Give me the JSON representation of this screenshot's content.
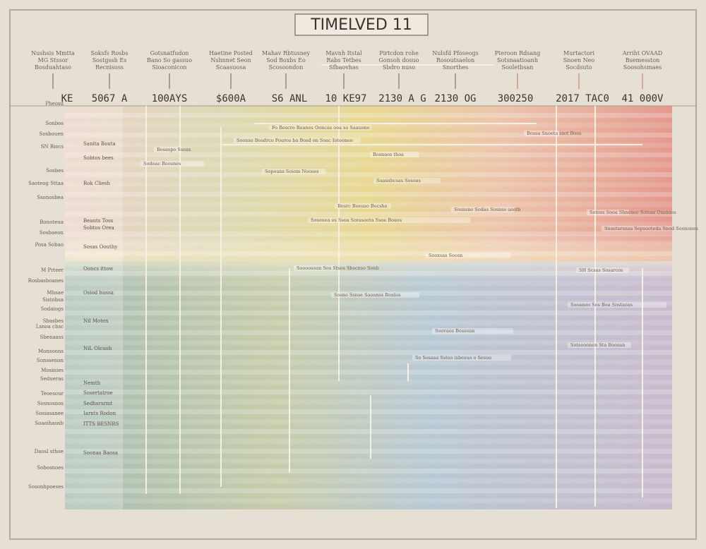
{
  "header": {
    "title": "TIMELVED 11"
  },
  "columns": [
    {
      "caption": [
        "Nushsis Mmtta",
        "MG Stssor",
        "Bosduahtaso"
      ],
      "era": "KE"
    },
    {
      "caption": [
        "Soksfs Rosbs",
        "Sostgssh Es",
        "Recnisoss"
      ],
      "era": "5067 A"
    },
    {
      "caption": [
        "Gotsnatfudon",
        "Bano So gassuo",
        "Sioaconicon"
      ],
      "era": "100AYS"
    },
    {
      "caption": [
        "Haetine Posted",
        "Nshnnet Seon",
        "Scaasuosa"
      ],
      "era": "$600A"
    },
    {
      "caption": [
        "Mahav Rbtusney",
        "Sod Boxbs Eo",
        "Scosoondon"
      ],
      "era": "S6 ANL"
    },
    {
      "caption": [
        "Mavnh Itstal",
        "Rabs Tetbes",
        "Sfbaovhas"
      ],
      "era": "10 KE97"
    },
    {
      "caption": [
        "Pirtcdon rohe",
        "Gonsoh dosuo",
        "Sbdro nuso"
      ],
      "era": "2130 A G"
    },
    {
      "caption": [
        "Nulsfd Pfoseogs",
        "Rosoutsaelon",
        "Snorthes"
      ],
      "era": "2130 OG"
    },
    {
      "caption": [
        "Pteroon Rdsang",
        "Sotsnaatioanh",
        "Sooletbsan"
      ],
      "era": "300250"
    },
    {
      "caption": [
        "Murtactori",
        "Snoen Neo",
        "Socdsuto"
      ],
      "era": "2017 TAC0"
    },
    {
      "caption": [
        "Arriht OVAAD",
        "Bsemesston",
        "Soosohsmaes"
      ],
      "era": "41 000V"
    }
  ],
  "rows": [
    "Pheosd",
    "Sonbos",
    "Sosbouen",
    "SN Biocs",
    "Sosbes",
    "Saoteog Sttaa",
    "Ssonosbea",
    "Bonoteua",
    "Sosbaeon",
    "Posa Sobao",
    "M Prteer",
    "Rosbasboanes",
    "Mhsae",
    "Sistobsa",
    "Sodaiogs",
    "Sbasbes",
    "Lsnoa chsc",
    "Sbenaass",
    "Monsoons",
    "Sonssenon",
    "Mosinies",
    "Sedueras",
    "Teoesour",
    "Sosnosnos",
    "Sosiasanee",
    "Soaoihaosb",
    "Daosl sthoe",
    "Sobosnoes",
    "Sosonhpoeses"
  ],
  "side": [
    "Sanita Bouta",
    "Sobtos bees",
    "Rok Cliesh",
    "Beauts Toss",
    "Sobtos Orea",
    "Sosas Oouthy",
    "Ooncs ittow",
    "Osiod hussa",
    "Nil Moten",
    "NiL Olcuoh",
    "Nemth",
    "Sosertatroe",
    "Sedhsrsrmt",
    "Iarnts Rodon",
    "ITTS BESNRS",
    "Soonas Baosa"
  ],
  "events": [
    "Fo Boscro Reanes Ooncas ooa so Saauone",
    "Soonso Bosdrco Fouros ba Bosd on Soac Iotooneo",
    "Bosaspo Ssoas",
    "Bosnaos thoa",
    "Sodoac Boosnes",
    "Sopoans Soiom Nooses",
    "Saasubcsas Sosoas",
    "Bossa Snoeta ssot Boos",
    "Bosrc Boeuso Bocshe",
    "Sosnsno Sodas Sosnso asotb",
    "Sosouea os Ssoa Sorasoota Ssoe Boaos",
    "Sotoss Sooa Shnoseo Sotoss Ossnoos",
    "Snsetarsnas Sopsooteda Snod Soonones",
    "Sooxsas Soosn",
    "Soooosoan Sos Stsos Sbscnso Sonb",
    "Sosno Ssnse Saoanss Ronlos",
    "SH Scsas Sosarcos",
    "Sooanoo Sos Boa Sostaoas",
    "Soovaos Bossoan",
    "Sotsooonen Sta Boosan",
    "So Sosasa Sstoo isbesuo o Sesuo"
  ]
}
